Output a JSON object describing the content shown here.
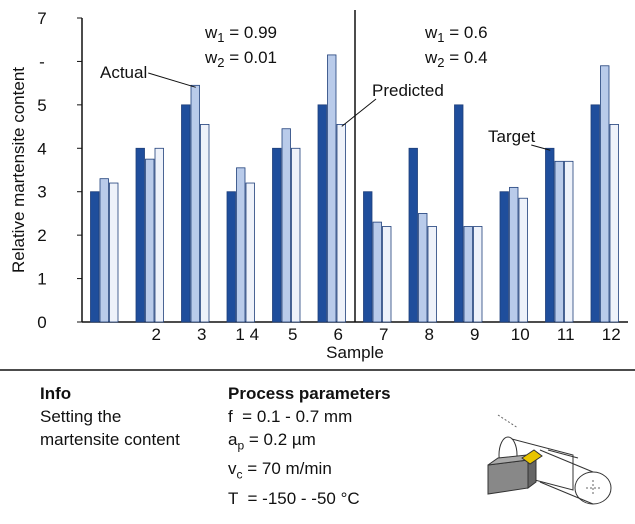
{
  "chart_data": {
    "type": "grouped-bar",
    "y_label": "Relative martensite content",
    "x_label": "Sample",
    "categories": [
      null,
      "2",
      "3",
      "1 4",
      "5",
      "6",
      "7",
      "8",
      "9",
      "10",
      "11",
      "12"
    ],
    "series": [
      {
        "name": "Target",
        "color": "#1f4e9c",
        "values": [
          3,
          4,
          5,
          3,
          4,
          5,
          3,
          4,
          5,
          3,
          4,
          5
        ]
      },
      {
        "name": "Actual",
        "color": "#b9cbea",
        "values": [
          3.3,
          3.75,
          5.45,
          3.55,
          4.45,
          6.15,
          2.3,
          2.5,
          2.2,
          3.1,
          3.7,
          5.9
        ]
      },
      {
        "name": "Predicted",
        "color": "#eef2fa",
        "values": [
          3.2,
          4.0,
          4.55,
          3.2,
          4.0,
          4.55,
          2.2,
          2.2,
          2.2,
          2.85,
          3.7,
          4.55
        ]
      }
    ],
    "ylim": [
      0,
      7
    ],
    "yticks": [
      0,
      1,
      2,
      3,
      4,
      5,
      {
        "value": 6,
        "label": "-"
      },
      7
    ],
    "weights": [
      [
        {
          "symbol": "w",
          "sub": "1",
          "text": " = 0.99"
        },
        {
          "symbol": "w",
          "sub": "2",
          "text": " = 0.01"
        }
      ],
      [
        {
          "symbol": "w",
          "sub": "1",
          "text": " = 0.6"
        },
        {
          "symbol": "w",
          "sub": "2",
          "text": " = 0.4"
        }
      ]
    ]
  },
  "info": {
    "heading": "Info",
    "text_lines": [
      "Setting the",
      "martensite content"
    ]
  },
  "process": {
    "heading": "Process parameters",
    "params": [
      {
        "symbol": "f",
        "sub": "",
        "text": "  = 0.1 - 0.7 mm"
      },
      {
        "symbol": "a",
        "sub": "p",
        "text": " = 0.2 µm"
      },
      {
        "symbol": "v",
        "sub": "c",
        "text": " = 70 m/min"
      },
      {
        "symbol": "T",
        "sub": "",
        "text": "  = -150 - -50 °C"
      }
    ]
  }
}
